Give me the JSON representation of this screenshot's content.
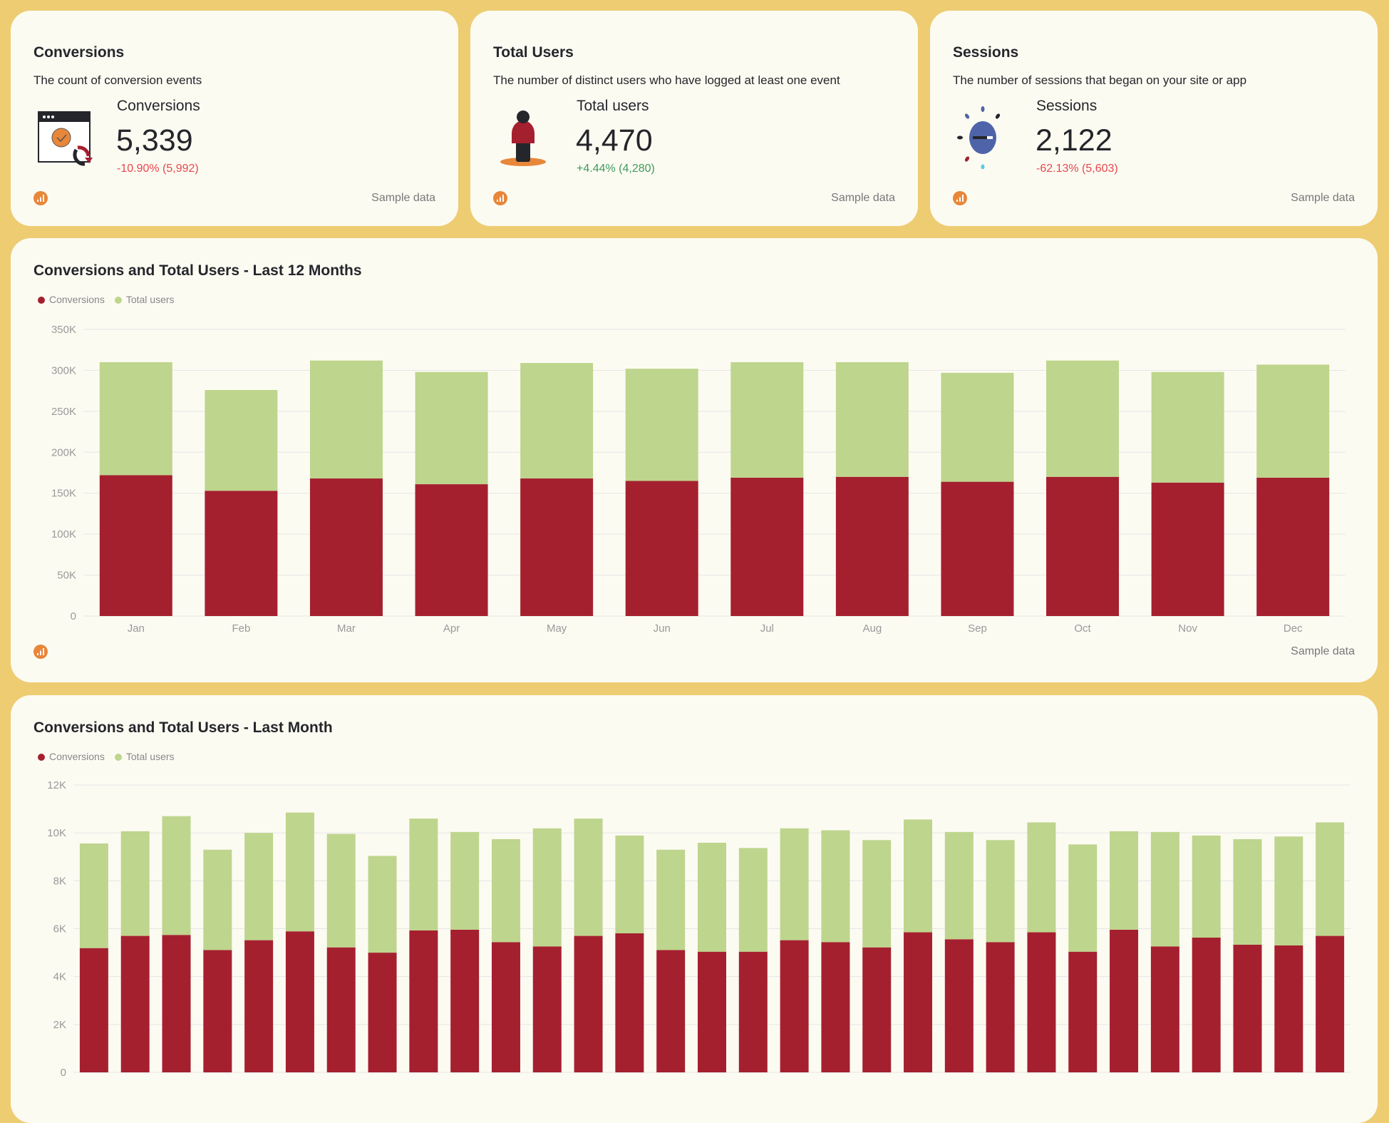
{
  "colors": {
    "conversions": "#a5202f",
    "total_users": "#bed58d",
    "background": "#eecc72",
    "card": "#fcfbf2"
  },
  "kpis": [
    {
      "title": "Conversions",
      "description": "The count of conversion events",
      "label": "Conversions",
      "value": "5,339",
      "change": "-10.90% (5,992)",
      "trend": "negative",
      "icon": "browser-conversion-icon",
      "footer": "Sample data"
    },
    {
      "title": "Total Users",
      "description": "The number of distinct users who have logged at least one event",
      "label": "Total users",
      "value": "4,470",
      "change": "+4.44% (4,280)",
      "trend": "positive",
      "icon": "person-icon",
      "footer": "Sample data"
    },
    {
      "title": "Sessions",
      "description": "The number of sessions that began on your site or app",
      "label": "Sessions",
      "value": "2,122",
      "change": "-62.13% (5,603)",
      "trend": "negative",
      "icon": "sessions-sun-icon",
      "footer": "Sample data"
    }
  ],
  "legend": {
    "conversions": "Conversions",
    "total_users": "Total users"
  },
  "chart_data": [
    {
      "type": "bar",
      "stacked": true,
      "title": "Conversions and Total Users - Last 12 Months",
      "footer": "Sample data",
      "categories": [
        "Jan",
        "Feb",
        "Mar",
        "Apr",
        "May",
        "Jun",
        "Jul",
        "Aug",
        "Sep",
        "Oct",
        "Nov",
        "Dec"
      ],
      "ylim": [
        0,
        350000
      ],
      "yticks": [
        "0",
        "50K",
        "100K",
        "150K",
        "200K",
        "250K",
        "300K",
        "350K"
      ],
      "grid": true,
      "legend": "top-left",
      "series": [
        {
          "name": "Conversions",
          "values": [
            172000,
            153000,
            168000,
            161000,
            168000,
            165000,
            169000,
            170000,
            164000,
            170000,
            163000,
            169000
          ]
        },
        {
          "name": "Total users",
          "values": [
            138000,
            123000,
            144000,
            137000,
            141000,
            137000,
            141000,
            140000,
            133000,
            142000,
            135000,
            138000
          ]
        }
      ]
    },
    {
      "type": "bar",
      "stacked": true,
      "title": "Conversions and Total Users - Last Month",
      "footer": "",
      "ylim": [
        0,
        12000
      ],
      "yticks": [
        "0",
        "2K",
        "4K",
        "6K",
        "8K",
        "10K",
        "12K"
      ],
      "grid": true,
      "legend": "top-left",
      "series": [
        {
          "name": "Conversions",
          "values": [
            5190,
            5700,
            5740,
            5110,
            5520,
            5890,
            5220,
            5000,
            5930,
            5960,
            5440,
            5260,
            5700,
            5810,
            5110,
            5040,
            5040,
            5520,
            5440,
            5220,
            5850,
            5560,
            5440,
            5850,
            5040,
            5960,
            5260,
            5630,
            5330,
            5300,
            5700
          ]
        },
        {
          "name": "Total users",
          "values": [
            4370,
            4370,
            4960,
            4190,
            4480,
            4960,
            4740,
            4040,
            4670,
            4080,
            4300,
            4930,
            4900,
            4080,
            4190,
            4550,
            4330,
            4670,
            4670,
            4480,
            4710,
            4480,
            4260,
            4590,
            4480,
            4110,
            4780,
            4260,
            4410,
            4550,
            4740
          ]
        }
      ]
    }
  ]
}
